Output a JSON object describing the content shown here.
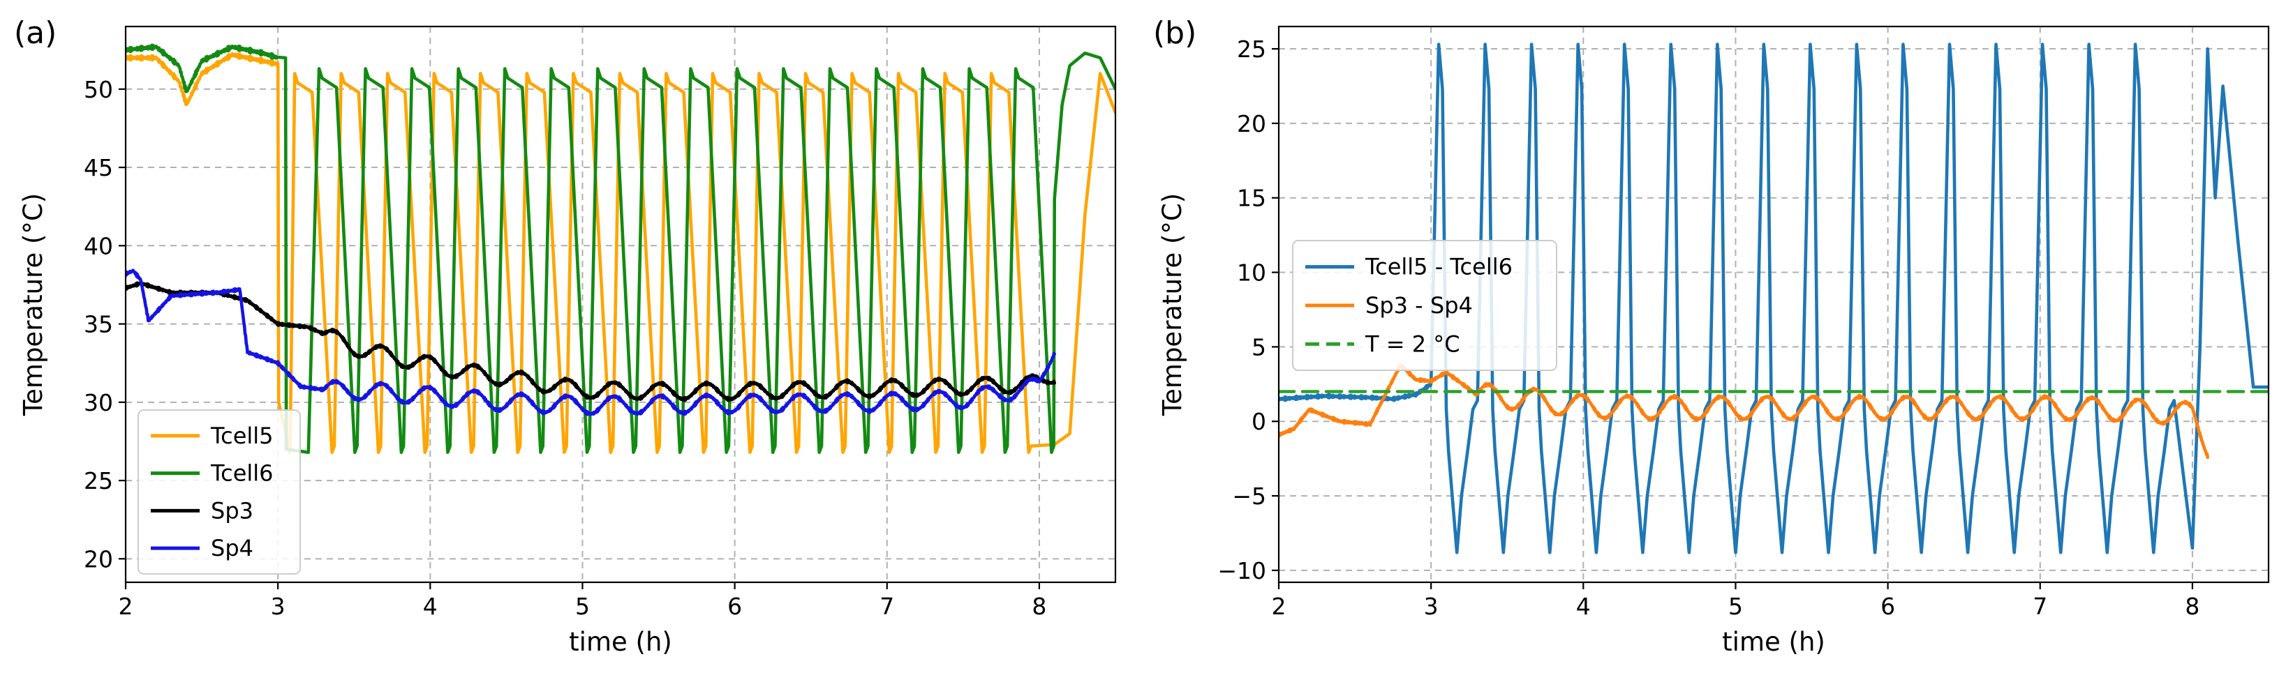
{
  "chart_data": [
    {
      "panel_label": "(a)",
      "type": "line",
      "xlabel": "time (h)",
      "ylabel": "Temperature (°C)",
      "xlim": [
        2,
        8.5
      ],
      "ylim": [
        18.5,
        54
      ],
      "xticks": [
        2,
        3,
        4,
        5,
        6,
        7,
        8
      ],
      "yticks": [
        20,
        25,
        30,
        35,
        40,
        45,
        50
      ],
      "grid": true,
      "legend_position": "lower-left",
      "series": [
        {
          "name": "Tcell5",
          "color": "#ffa500",
          "dash": "solid",
          "model": {
            "kind": "cycle_pre",
            "pre_x": [
              2.0,
              2.2,
              2.35,
              2.4,
              2.5,
              2.7,
              2.9,
              3.0
            ],
            "pre_y": [
              52.0,
              52.0,
              50.5,
              49.0,
              51.0,
              52.2,
              51.8,
              51.6
            ],
            "drop_x": 3.0,
            "drop_to": 30.0,
            "trough_x": 3.08,
            "cycle_start": 3.05,
            "period": 0.305,
            "high": 51.0,
            "low": 26.8,
            "fall": 0.13,
            "rise": 0.06,
            "end_x": 8.1,
            "end_y": 27.3,
            "post_x": [
              8.1,
              8.2,
              8.3,
              8.4,
              8.5
            ],
            "post_y": [
              27.3,
              28.0,
              42.0,
              51.0,
              48.5
            ]
          }
        },
        {
          "name": "Tcell6",
          "color": "#138a13",
          "dash": "solid",
          "model": {
            "kind": "cycle_pre",
            "pre_x": [
              2.0,
              2.2,
              2.35,
              2.4,
              2.5,
              2.7,
              2.9,
              3.0
            ],
            "pre_y": [
              52.5,
              52.7,
              51.5,
              49.8,
              51.8,
              52.7,
              52.3,
              52.0
            ],
            "drop_x": 3.05,
            "drop_to": 27.0,
            "trough_x": 3.2,
            "cycle_start": 3.2,
            "period": 0.305,
            "high": 51.3,
            "low": 26.8,
            "fall": 0.12,
            "rise": 0.07,
            "end_x": 8.1,
            "end_y": 43.0,
            "post_x": [
              8.1,
              8.15,
              8.2,
              8.3,
              8.4,
              8.5
            ],
            "post_y": [
              43.0,
              49.0,
              51.5,
              52.3,
              52.0,
              50.0
            ]
          }
        },
        {
          "name": "Sp3",
          "color": "#000000",
          "dash": "solid",
          "model": {
            "kind": "osc",
            "x": [
              2.0,
              2.1,
              2.3,
              2.6,
              2.8,
              3.0,
              3.2,
              3.5,
              3.8,
              4.2,
              4.6,
              5.0,
              5.5,
              6.0,
              6.5,
              7.0,
              7.5,
              8.0,
              8.1
            ],
            "y": [
              37.3,
              37.6,
              37.0,
              37.0,
              36.5,
              35.0,
              34.8,
              33.5,
              32.8,
              32.0,
              31.4,
              30.8,
              30.7,
              30.7,
              30.8,
              30.9,
              31.0,
              31.2,
              31.8
            ],
            "amp": 0.5,
            "start": 3.3,
            "period": 0.305
          }
        },
        {
          "name": "Sp4",
          "color": "#1414e6",
          "dash": "solid",
          "model": {
            "kind": "osc",
            "x": [
              2.0,
              2.05,
              2.1,
              2.15,
              2.3,
              2.6,
              2.75,
              2.8,
              3.0,
              3.15,
              3.3,
              3.6,
              4.0,
              4.5,
              5.0,
              6.0,
              7.0,
              7.5,
              8.0,
              8.1
            ],
            "y": [
              38.2,
              38.4,
              37.8,
              35.2,
              36.8,
              37.0,
              37.2,
              33.2,
              32.5,
              31.0,
              30.8,
              30.7,
              30.4,
              30.0,
              29.8,
              29.9,
              30.0,
              30.2,
              31.0,
              33.7
            ],
            "amp": 0.55,
            "start": 3.3,
            "period": 0.305
          }
        }
      ]
    },
    {
      "panel_label": "(b)",
      "type": "line",
      "xlabel": "time (h)",
      "ylabel": "Temperature (°C)",
      "xlim": [
        2,
        8.5
      ],
      "ylim": [
        -10.8,
        26.5
      ],
      "xticks": [
        2,
        3,
        4,
        5,
        6,
        7,
        8
      ],
      "yticks": [
        -10,
        -5,
        0,
        5,
        10,
        15,
        20,
        25
      ],
      "grid": true,
      "legend_position": "center-left",
      "series": [
        {
          "name": "Tcell5 - Tcell6",
          "color": "#1f77b4",
          "dash": "solid",
          "model": {
            "kind": "spikes",
            "pre_x": [
              2.0,
              2.3,
              2.6,
              2.75,
              2.9,
              3.0
            ],
            "pre_y": [
              1.5,
              1.7,
              1.6,
              1.5,
              1.8,
              2.5
            ],
            "start": 3.0,
            "period": 0.305,
            "peak": 25.3,
            "trough": -8.8,
            "base": 0.8,
            "end_x": 8.0,
            "post_x": [
              8.0,
              8.05,
              8.1,
              8.15,
              8.2,
              8.3,
              8.4,
              8.5
            ],
            "post_y": [
              -8.5,
              5.0,
              25.0,
              15.0,
              22.5,
              12.0,
              2.3,
              2.3
            ]
          }
        },
        {
          "name": "Sp3 - Sp4",
          "color": "#ff7f0e",
          "dash": "solid",
          "model": {
            "kind": "osc",
            "x": [
              2.0,
              2.1,
              2.2,
              2.4,
              2.6,
              2.8,
              2.9,
              3.0,
              3.1,
              3.3,
              3.6,
              4.0,
              4.5,
              5.0,
              6.0,
              7.0,
              7.5,
              8.0,
              8.1
            ],
            "y": [
              -0.9,
              -0.5,
              0.8,
              0.0,
              -0.2,
              3.8,
              2.8,
              2.7,
              3.3,
              1.8,
              1.5,
              1.0,
              0.9,
              0.9,
              0.9,
              0.9,
              0.8,
              0.5,
              -1.6
            ],
            "amp": 0.75,
            "start": 3.3,
            "period": 0.305
          }
        },
        {
          "name": "T = 2 °C",
          "color": "#2ca02c",
          "dash": "dashed",
          "model": {
            "kind": "const",
            "x": [
              2.0,
              8.5
            ],
            "y": [
              2,
              2
            ]
          }
        }
      ]
    }
  ]
}
